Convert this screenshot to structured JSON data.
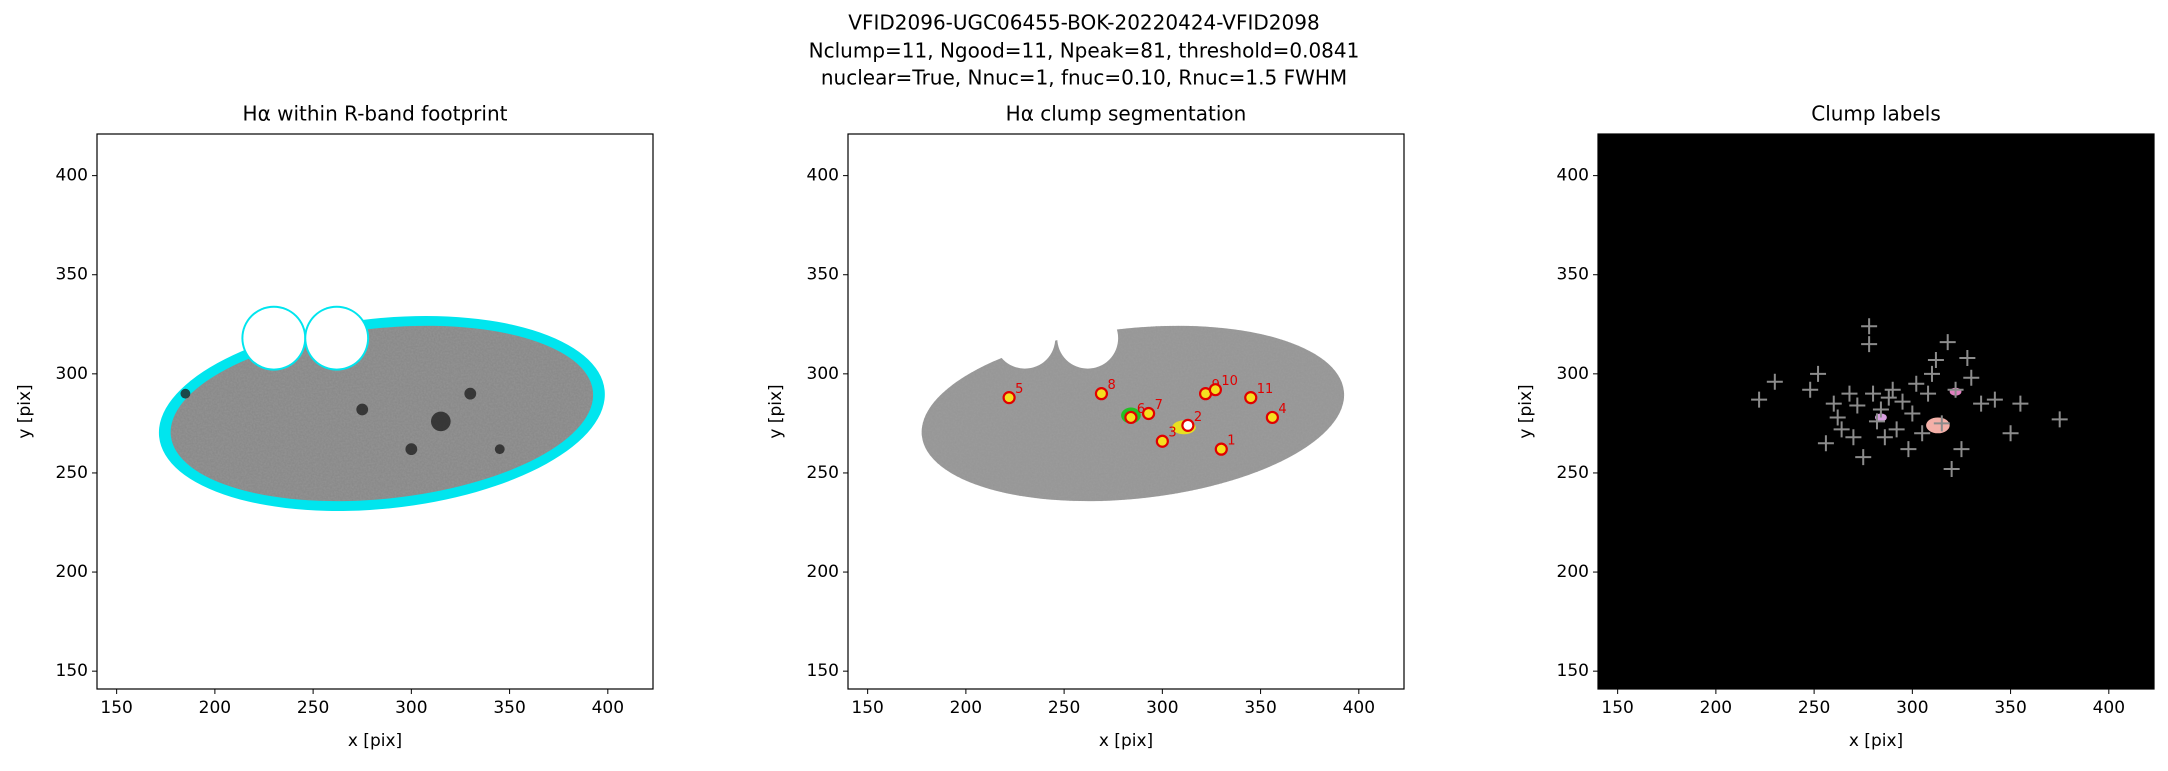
{
  "figure_title": [
    "VFID2096-UGC06455-BOK-20220424-VFID2098",
    "Nclump=11, Ngood=11, Npeak=81, threshold=0.0841",
    "nuclear=True, Nnuc=1, fnuc=0.10, Rnuc=1.5 FWHM"
  ],
  "chart_data": [
    {
      "type": "footprint",
      "title": "Hα within R-band footprint",
      "xlabel": "x [pix]",
      "ylabel": "y [pix]",
      "xlim": [
        140,
        423
      ],
      "ylim": [
        141,
        421
      ],
      "xticks": [
        150,
        200,
        250,
        300,
        350,
        400
      ],
      "yticks": [
        150,
        200,
        250,
        300,
        350,
        400
      ]
    },
    {
      "type": "segmentation",
      "title": "Hα clump segmentation",
      "xlabel": "x [pix]",
      "ylabel": "y [pix]",
      "xlim": [
        140,
        423
      ],
      "ylim": [
        141,
        421
      ],
      "xticks": [
        150,
        200,
        250,
        300,
        350,
        400
      ],
      "yticks": [
        150,
        200,
        250,
        300,
        350,
        400
      ],
      "clumps": {
        "x": [
          330,
          313,
          300,
          356,
          222,
          284,
          293,
          269,
          322,
          327,
          345
        ],
        "y": [
          262,
          274,
          266,
          278,
          288,
          278,
          280,
          290,
          290,
          292,
          288
        ],
        "labels": [
          "1",
          "2",
          "3",
          "4",
          "5",
          "6",
          "7",
          "8",
          "9",
          "10",
          "11"
        ]
      }
    },
    {
      "type": "labels",
      "title": "Clump labels",
      "xlabel": "x [pix]",
      "ylabel": "y [pix]",
      "xlim": [
        140,
        423
      ],
      "ylim": [
        141,
        421
      ],
      "xticks": [
        150,
        200,
        250,
        300,
        350,
        400
      ],
      "yticks": [
        150,
        200,
        250,
        300,
        350,
        400
      ],
      "peaks": {
        "x": [
          222,
          230,
          248,
          252,
          256,
          260,
          262,
          264,
          268,
          270,
          272,
          275,
          278,
          278,
          280,
          282,
          284,
          286,
          288,
          290,
          292,
          295,
          298,
          300,
          302,
          305,
          308,
          310,
          312,
          315,
          318,
          320,
          322,
          325,
          328,
          330,
          335,
          342,
          350,
          355,
          375
        ],
        "y": [
          287,
          296,
          292,
          300,
          265,
          285,
          278,
          272,
          290,
          268,
          284,
          258,
          324,
          315,
          290,
          276,
          282,
          268,
          288,
          292,
          272,
          286,
          262,
          280,
          295,
          270,
          290,
          300,
          307,
          275,
          316,
          252,
          292,
          262,
          308,
          298,
          285,
          287,
          270,
          285,
          277
        ]
      }
    }
  ]
}
